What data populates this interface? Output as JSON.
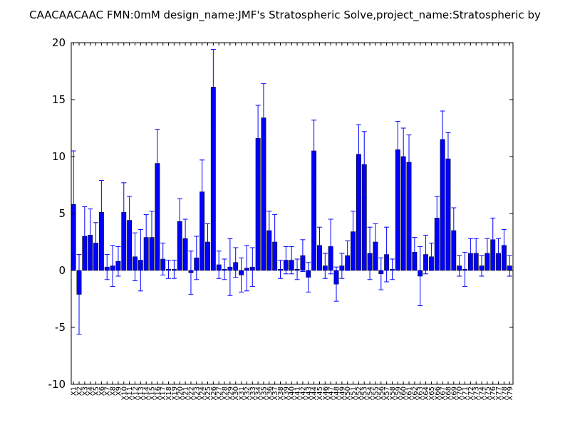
{
  "chart_data": {
    "type": "bar",
    "title": "CAACAACAAC  FMN:0mM  design_name:JMF's Stratospheric Solve,project_name:Stratospheric by",
    "xlabel": "",
    "ylabel": "",
    "ylim": [
      -10,
      20
    ],
    "yticks": [
      -10,
      -5,
      0,
      5,
      10,
      15,
      20
    ],
    "grid": false,
    "bar_color": "#0000ff",
    "error_color": "#0000ff",
    "categories": [
      "X1",
      "X2",
      "X3",
      "X4",
      "X5",
      "X6",
      "X7",
      "X8",
      "X9",
      "X10",
      "X11",
      "X12",
      "X13",
      "X14",
      "X15",
      "X16",
      "X17",
      "X18",
      "X19",
      "X20",
      "X21",
      "X22",
      "X23",
      "X24",
      "X25",
      "X26",
      "X27",
      "X28",
      "X29",
      "X30",
      "X31",
      "X32",
      "X33",
      "X34",
      "X35",
      "X36",
      "X37",
      "X38",
      "X39",
      "X40",
      "X41",
      "X42",
      "X43",
      "X44",
      "X45",
      "X46",
      "X47",
      "X48",
      "X49",
      "X50",
      "X51",
      "X52",
      "X53",
      "X54",
      "X55",
      "X56",
      "X57",
      "X58",
      "X59",
      "X60",
      "X61",
      "X62",
      "X63",
      "X64",
      "X65",
      "X66",
      "X67",
      "X68",
      "X69",
      "X70",
      "X71",
      "X72",
      "X73",
      "X74",
      "X75",
      "X76",
      "X77",
      "X78",
      "X79"
    ],
    "values": [
      5.8,
      -2.1,
      3.0,
      3.1,
      2.4,
      5.1,
      0.3,
      0.4,
      0.8,
      5.1,
      4.4,
      1.2,
      0.9,
      2.9,
      2.9,
      9.4,
      1.0,
      0.1,
      0.1,
      4.3,
      2.8,
      -0.2,
      1.1,
      6.9,
      2.5,
      16.1,
      0.5,
      0.1,
      0.3,
      0.7,
      -0.4,
      0.2,
      0.3,
      11.6,
      13.4,
      3.5,
      2.5,
      0.1,
      0.9,
      0.9,
      0.1,
      1.3,
      -0.6,
      10.5,
      2.2,
      0.4,
      2.1,
      -1.2,
      0.4,
      1.3,
      3.4,
      10.2,
      9.3,
      1.5,
      2.5,
      -0.3,
      1.4,
      0.1,
      10.6,
      10.0,
      9.5,
      1.6,
      -0.5,
      1.4,
      1.2,
      4.6,
      11.5,
      9.8,
      3.5,
      0.4,
      0.1,
      1.5,
      1.5,
      0.4,
      1.5,
      2.7,
      1.5,
      2.2,
      0.4
    ],
    "errors": [
      4.7,
      3.5,
      2.6,
      2.3,
      1.8,
      2.8,
      1.1,
      1.8,
      1.3,
      2.6,
      2.1,
      2.1,
      2.7,
      2.0,
      2.3,
      3.0,
      1.4,
      0.8,
      0.8,
      2.0,
      1.7,
      1.9,
      1.9,
      2.8,
      1.6,
      3.3,
      1.2,
      0.9,
      2.5,
      1.3,
      1.5,
      2.0,
      1.7,
      2.9,
      3.0,
      1.7,
      2.4,
      0.8,
      1.2,
      1.2,
      0.9,
      1.4,
      1.3,
      2.7,
      1.6,
      1.1,
      2.4,
      1.5,
      1.1,
      1.3,
      1.8,
      2.6,
      2.9,
      2.3,
      1.6,
      1.4,
      2.4,
      0.9,
      2.5,
      2.5,
      2.4,
      1.3,
      2.6,
      1.7,
      1.2,
      1.9,
      2.5,
      2.3,
      2.0,
      0.9,
      1.5,
      1.3,
      1.3,
      0.9,
      1.3,
      1.9,
      1.3,
      1.4,
      0.9
    ]
  }
}
